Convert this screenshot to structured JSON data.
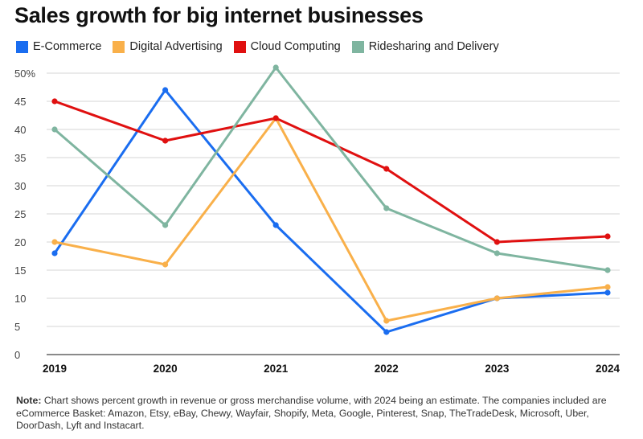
{
  "chart_data": {
    "type": "line",
    "title": "Sales growth for big internet businesses",
    "categories": [
      "2019",
      "2020",
      "2021",
      "2022",
      "2023",
      "2024"
    ],
    "y_ticks": [
      "0",
      "5",
      "10",
      "15",
      "20",
      "25",
      "30",
      "35",
      "40",
      "45",
      "50%"
    ],
    "ylim": [
      0,
      50
    ],
    "series": [
      {
        "name": "E-Commerce",
        "color": "#1a6df0",
        "values": [
          18,
          47,
          23,
          4,
          10,
          11
        ]
      },
      {
        "name": "Digital Advertising",
        "color": "#f9b04a",
        "values": [
          20,
          16,
          42,
          6,
          10,
          12
        ]
      },
      {
        "name": "Cloud Computing",
        "color": "#e01010",
        "values": [
          45,
          38,
          42,
          33,
          20,
          21
        ]
      },
      {
        "name": "Ridesharing and Delivery",
        "color": "#7fb5a0",
        "values": [
          40,
          23,
          51,
          26,
          18,
          15
        ]
      }
    ],
    "grid": true,
    "legend_position": "top-left"
  },
  "note": {
    "label": "Note:",
    "text": " Chart shows percent growth in revenue or gross merchandise volume, with 2024 being an estimate. The companies included are eCommerce Basket: Amazon, Etsy, eBay, Chewy, Wayfair, Shopify, Meta, Google, Pinterest, Snap, TheTradeDesk, Microsoft, Uber, DoorDash, Lyft and Instacart."
  }
}
